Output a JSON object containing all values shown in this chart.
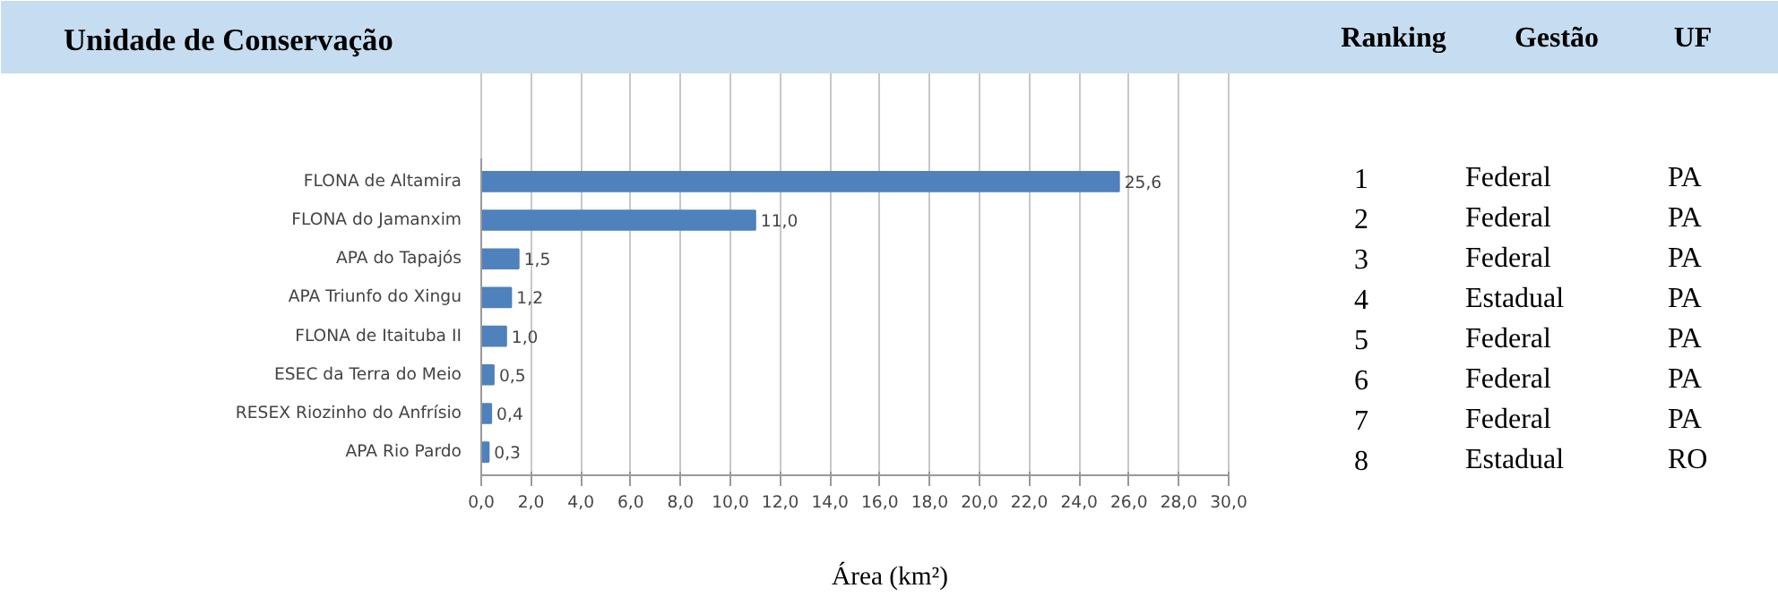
{
  "chart_data": {
    "type": "bar",
    "orientation": "horizontal",
    "title": "Unidade de Conservação",
    "xlabel": "Área (km²)",
    "categories": [
      "FLONA de Altamira",
      "FLONA do Jamanxim",
      "APA do Tapajós",
      "APA Triunfo do Xingu",
      "FLONA de Itaituba II",
      "ESEC da Terra do Meio",
      "RESEX Riozinho do Anfrísio",
      "APA Rio Pardo"
    ],
    "values": [
      25.6,
      11.0,
      1.5,
      1.2,
      1.0,
      0.5,
      0.4,
      0.3
    ],
    "value_labels": [
      "25,6",
      "11,0",
      "1,5",
      "1,2",
      "1,0",
      "0,5",
      "0,4",
      "0,3"
    ],
    "color": "#4f81bd",
    "xlim": [
      0,
      30
    ],
    "xticks": [
      {
        "value": 0,
        "label": "0,0"
      },
      {
        "value": 2,
        "label": "2,0"
      },
      {
        "value": 4,
        "label": "4,0"
      },
      {
        "value": 6,
        "label": "6,0"
      },
      {
        "value": 8,
        "label": "8,0"
      },
      {
        "value": 10,
        "label": "10,0"
      },
      {
        "value": 12,
        "label": "12,0"
      },
      {
        "value": 14,
        "label": "14,0"
      },
      {
        "value": 16,
        "label": "16,0"
      },
      {
        "value": 18,
        "label": "18,0"
      },
      {
        "value": 20,
        "label": "20,0"
      },
      {
        "value": 22,
        "label": "22,0"
      },
      {
        "value": 24,
        "label": "24,0"
      },
      {
        "value": 26,
        "label": "26,0"
      },
      {
        "value": 28,
        "label": "28,0"
      },
      {
        "value": 30,
        "label": "30,0"
      }
    ],
    "grid": "x",
    "annotations": [
      "Ranking",
      "Gestão",
      "UF",
      "1",
      "Federal",
      "PA",
      "2",
      "Federal",
      "PA",
      "3",
      "Federal",
      "PA",
      "4",
      "Estadual",
      "PA",
      "5",
      "Federal",
      "PA",
      "6",
      "Federal",
      "PA",
      "7",
      "Federal",
      "PA",
      "8",
      "Estadual",
      "RO"
    ]
  }
}
